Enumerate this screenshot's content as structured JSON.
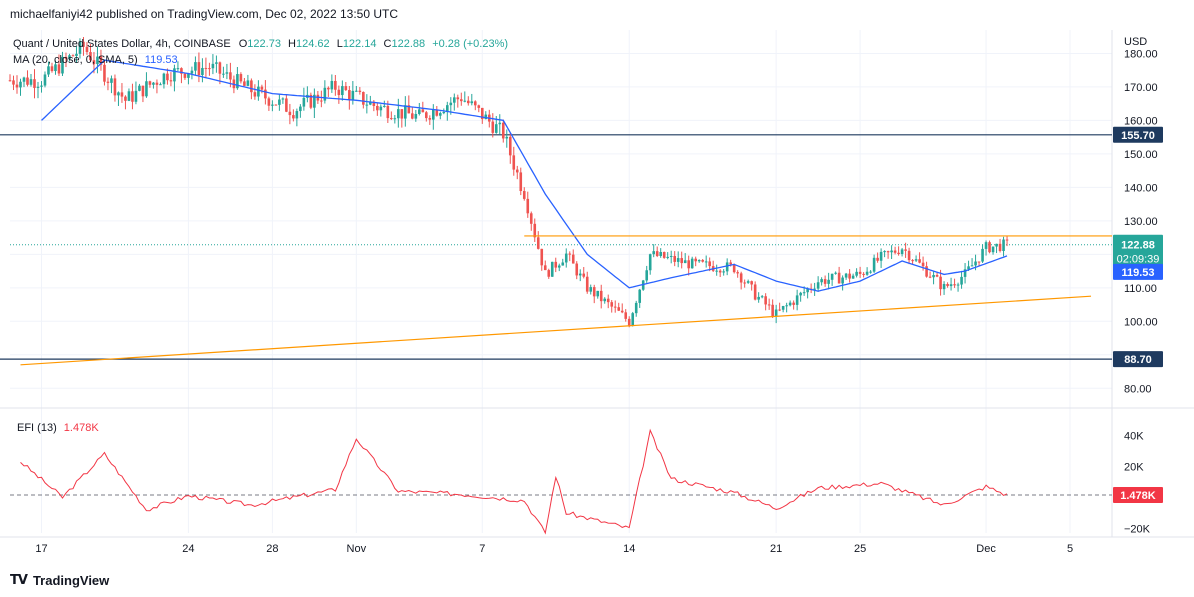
{
  "header": {
    "publisher_line": "michaelfaniyi42 published on TradingView.com, Dec 02, 2022 13:50 UTC"
  },
  "legend": {
    "symbol": "Quant / United States Dollar, 4h, COINBASE",
    "ohlc": {
      "o_label": "O",
      "o": "122.73",
      "h_label": "H",
      "h": "124.62",
      "l_label": "L",
      "l": "122.14",
      "c_label": "C",
      "c": "122.88",
      "change": "+0.28 (+0.23%)"
    },
    "ma_label": "MA (20, close, 0, SMA, 5)",
    "ma_value": "119.53",
    "efi_label": "EFI (13)",
    "efi_value": "1.478K"
  },
  "footer": {
    "logo_text": "TradingView"
  },
  "colors": {
    "up": "#26a69a",
    "down": "#ef5350",
    "ma": "#2962ff",
    "trend": "#ff9800",
    "hline": "#1e3a5f",
    "price_tag": "#2962ff",
    "efi": "#f23645",
    "grid": "#f0f3fa"
  },
  "chart_data": [
    {
      "type": "candlestick",
      "title": "Quant / United States Dollar, 4h, COINBASE",
      "ylabel": "USD",
      "ylim": [
        75,
        187
      ],
      "y_ticks": [
        "80.00",
        "90.00",
        "100.00",
        "110.00",
        "120.00",
        "130.00",
        "140.00",
        "150.00",
        "160.00",
        "170.00",
        "180.00"
      ],
      "x_ticks": [
        "17",
        "24",
        "28",
        "Nov",
        "7",
        "14",
        "21",
        "25",
        "Dec",
        "5"
      ],
      "grid": true,
      "series_anchors": [
        {
          "date": "2022-10-17",
          "close": 172
        },
        {
          "date": "2022-10-19",
          "close": 182
        },
        {
          "date": "2022-10-21",
          "close": 166
        },
        {
          "date": "2022-10-23",
          "close": 174
        },
        {
          "date": "2022-10-25",
          "close": 176
        },
        {
          "date": "2022-10-27",
          "close": 169
        },
        {
          "date": "2022-10-29",
          "close": 163
        },
        {
          "date": "2022-10-31",
          "close": 170
        },
        {
          "date": "2022-11-02",
          "close": 164
        },
        {
          "date": "2022-11-04",
          "close": 161
        },
        {
          "date": "2022-11-06",
          "close": 167
        },
        {
          "date": "2022-11-08",
          "close": 156
        },
        {
          "date": "2022-11-09",
          "close": 138
        },
        {
          "date": "2022-11-10",
          "close": 114
        },
        {
          "date": "2022-11-11",
          "close": 120
        },
        {
          "date": "2022-11-12",
          "close": 110
        },
        {
          "date": "2022-11-14",
          "close": 100
        },
        {
          "date": "2022-11-15",
          "close": 120
        },
        {
          "date": "2022-11-17",
          "close": 117
        },
        {
          "date": "2022-11-19",
          "close": 116
        },
        {
          "date": "2022-11-20",
          "close": 108
        },
        {
          "date": "2022-11-21",
          "close": 102
        },
        {
          "date": "2022-11-23",
          "close": 112
        },
        {
          "date": "2022-11-25",
          "close": 114
        },
        {
          "date": "2022-11-26",
          "close": 119
        },
        {
          "date": "2022-11-27",
          "close": 122
        },
        {
          "date": "2022-11-29",
          "close": 110
        },
        {
          "date": "2022-11-30",
          "close": 114
        },
        {
          "date": "2022-12-01",
          "close": 122
        },
        {
          "date": "2022-12-02",
          "close": 122.88
        }
      ],
      "ma_anchors": [
        {
          "date": "2022-10-17",
          "value": 160
        },
        {
          "date": "2022-10-20",
          "value": 178
        },
        {
          "date": "2022-10-24",
          "value": 174
        },
        {
          "date": "2022-10-28",
          "value": 168
        },
        {
          "date": "2022-11-01",
          "value": 166
        },
        {
          "date": "2022-11-05",
          "value": 163
        },
        {
          "date": "2022-11-08",
          "value": 160
        },
        {
          "date": "2022-11-10",
          "value": 138
        },
        {
          "date": "2022-11-12",
          "value": 120
        },
        {
          "date": "2022-11-14",
          "value": 110
        },
        {
          "date": "2022-11-16",
          "value": 113
        },
        {
          "date": "2022-11-19",
          "value": 117
        },
        {
          "date": "2022-11-21",
          "value": 112
        },
        {
          "date": "2022-11-23",
          "value": 109
        },
        {
          "date": "2022-11-25",
          "value": 112
        },
        {
          "date": "2022-11-27",
          "value": 118
        },
        {
          "date": "2022-11-29",
          "value": 114
        },
        {
          "date": "2022-11-30",
          "value": 115
        },
        {
          "date": "2022-12-02",
          "value": 119.53
        }
      ],
      "horizontal_lines": [
        {
          "value": 155.7,
          "label": "155.70"
        },
        {
          "value": 88.7,
          "label": "88.70"
        }
      ],
      "resistance_line": {
        "value": 125.5
      },
      "ascending_trendline": {
        "start": {
          "date": "2022-10-16",
          "value": 87
        },
        "end": {
          "date": "2022-12-06",
          "value": 107.5
        }
      },
      "price_tags": [
        {
          "value": 122.88,
          "label": "122.88",
          "sub": "02:09:39"
        },
        {
          "value": 119.53,
          "label": "119.53"
        }
      ]
    },
    {
      "type": "line",
      "title": "EFI (13)",
      "ylim": [
        -23000,
        55000
      ],
      "y_ticks": [
        "40K",
        "20K",
        "−20K"
      ],
      "current_value": "1.478K",
      "zero_line_value": 1478,
      "series_anchors": [
        {
          "date": "2022-10-16",
          "value": 23000
        },
        {
          "date": "2022-10-18",
          "value": 0
        },
        {
          "date": "2022-10-20",
          "value": 28000
        },
        {
          "date": "2022-10-22",
          "value": -8000
        },
        {
          "date": "2022-10-24",
          "value": 1000
        },
        {
          "date": "2022-10-27",
          "value": -5000
        },
        {
          "date": "2022-10-31",
          "value": 5000
        },
        {
          "date": "2022-11-01",
          "value": 38000
        },
        {
          "date": "2022-11-03",
          "value": 4000
        },
        {
          "date": "2022-11-06",
          "value": 2000
        },
        {
          "date": "2022-11-09",
          "value": -2000
        },
        {
          "date": "2022-11-10",
          "value": -23000
        },
        {
          "date": "2022-11-10T12",
          "value": 14000
        },
        {
          "date": "2022-11-11",
          "value": -10000
        },
        {
          "date": "2022-11-14",
          "value": -20000
        },
        {
          "date": "2022-11-15",
          "value": 42000
        },
        {
          "date": "2022-11-16",
          "value": 12000
        },
        {
          "date": "2022-11-19",
          "value": 3000
        },
        {
          "date": "2022-11-21",
          "value": -7000
        },
        {
          "date": "2022-11-23",
          "value": 6000
        },
        {
          "date": "2022-11-26",
          "value": 9000
        },
        {
          "date": "2022-11-29",
          "value": -5000
        },
        {
          "date": "2022-12-01",
          "value": 7000
        },
        {
          "date": "2022-12-02",
          "value": 1478
        }
      ]
    }
  ]
}
